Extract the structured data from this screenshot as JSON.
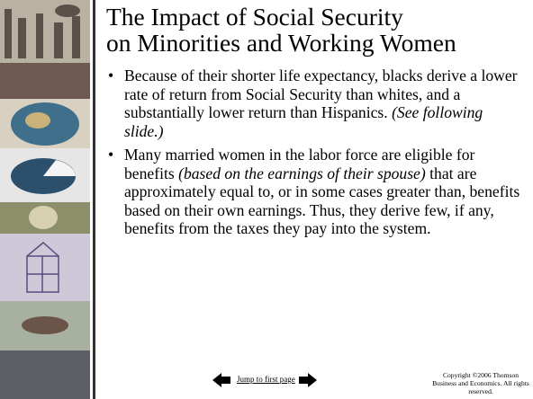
{
  "title": [
    "The Impact of Social Security",
    "on Minorities and Working Women"
  ],
  "bullets": [
    [
      {
        "text": "Because of their shorter life expectancy, blacks derive a lower rate of return from Social Security than whites, and a substantially lower return than Hispanics. ",
        "italic": false
      },
      {
        "text": "(See following slide.)",
        "italic": true
      }
    ],
    [
      {
        "text": "Many married women in the labor force are eligible for benefits ",
        "italic": false
      },
      {
        "text": "(based on the earnings of their spouse)",
        "italic": true
      },
      {
        "text": " that are  approximately equal to, or in some cases greater than, benefits based on their own earnings. Thus, they derive few, if any, benefits from the taxes they pay into the system.",
        "italic": false
      }
    ]
  ],
  "footer": {
    "link": "Jump to first page",
    "copyright": "Copyright ©2006 Thomson Business and Economics. All rights reserved."
  }
}
